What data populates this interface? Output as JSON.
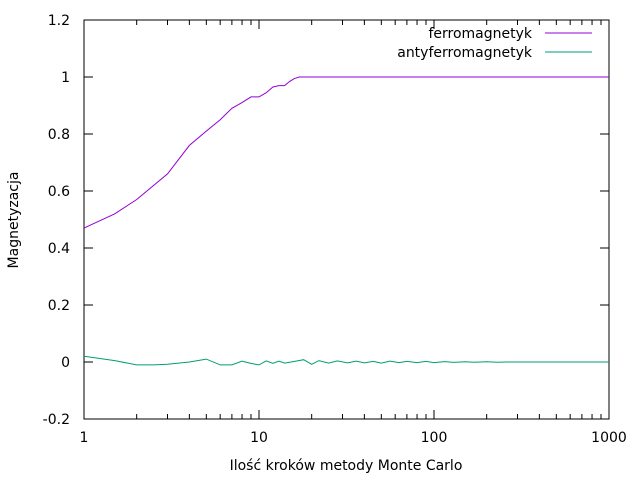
{
  "chart_data": {
    "type": "line",
    "xscale": "log",
    "xlim": [
      1,
      1000
    ],
    "ylim": [
      -0.2,
      1.2
    ],
    "xlabel": "Ilość kroków metody Monte Carlo",
    "ylabel": "Magnetyzacja",
    "xticks": [
      {
        "value": 1,
        "label": "1"
      },
      {
        "value": 10,
        "label": "10"
      },
      {
        "value": 100,
        "label": "100"
      },
      {
        "value": 1000,
        "label": "1000"
      }
    ],
    "yticks": [
      {
        "value": -0.2,
        "label": "-0.2"
      },
      {
        "value": 0,
        "label": "0"
      },
      {
        "value": 0.2,
        "label": "0.2"
      },
      {
        "value": 0.4,
        "label": "0.4"
      },
      {
        "value": 0.6,
        "label": "0.6"
      },
      {
        "value": 0.8,
        "label": "0.8"
      },
      {
        "value": 1,
        "label": "1"
      },
      {
        "value": 1.2,
        "label": "1.2"
      }
    ],
    "grid": false,
    "legend_position": "top-right",
    "series": [
      {
        "name": "ferromagnetyk",
        "color": "#9400d3",
        "x": [
          1,
          1.5,
          2,
          3,
          4,
          5,
          6,
          7,
          8,
          9,
          10,
          11,
          12,
          13,
          14,
          15,
          16,
          17,
          20,
          50,
          100,
          200,
          500,
          1000
        ],
        "y": [
          0.47,
          0.52,
          0.57,
          0.66,
          0.76,
          0.81,
          0.85,
          0.89,
          0.91,
          0.93,
          0.93,
          0.945,
          0.965,
          0.97,
          0.97,
          0.985,
          0.995,
          1.0,
          1.0,
          1.0,
          1.0,
          1.0,
          1.0,
          1.0
        ]
      },
      {
        "name": "antyferromagnetyk",
        "color": "#009e73",
        "x": [
          1,
          1.5,
          2,
          2.5,
          3,
          4,
          5,
          6,
          7,
          8,
          9,
          10,
          11,
          12,
          13,
          14,
          16,
          18,
          20,
          22,
          25,
          28,
          32,
          36,
          40,
          45,
          50,
          56,
          63,
          70,
          80,
          90,
          100,
          115,
          130,
          150,
          170,
          200,
          230,
          260,
          300,
          500,
          1000
        ],
        "y": [
          0.02,
          0.005,
          -0.01,
          -0.01,
          -0.008,
          0.0,
          0.01,
          -0.01,
          -0.01,
          0.003,
          -0.005,
          -0.01,
          0.004,
          -0.005,
          0.003,
          -0.004,
          0.002,
          0.008,
          -0.008,
          0.005,
          -0.004,
          0.004,
          -0.003,
          0.003,
          -0.003,
          0.002,
          -0.004,
          0.003,
          -0.002,
          0.002,
          -0.002,
          0.002,
          -0.002,
          0.0015,
          -0.0015,
          0.001,
          -0.001,
          0.001,
          -0.001,
          0.0,
          0.0,
          0.0,
          0.0
        ]
      }
    ]
  }
}
